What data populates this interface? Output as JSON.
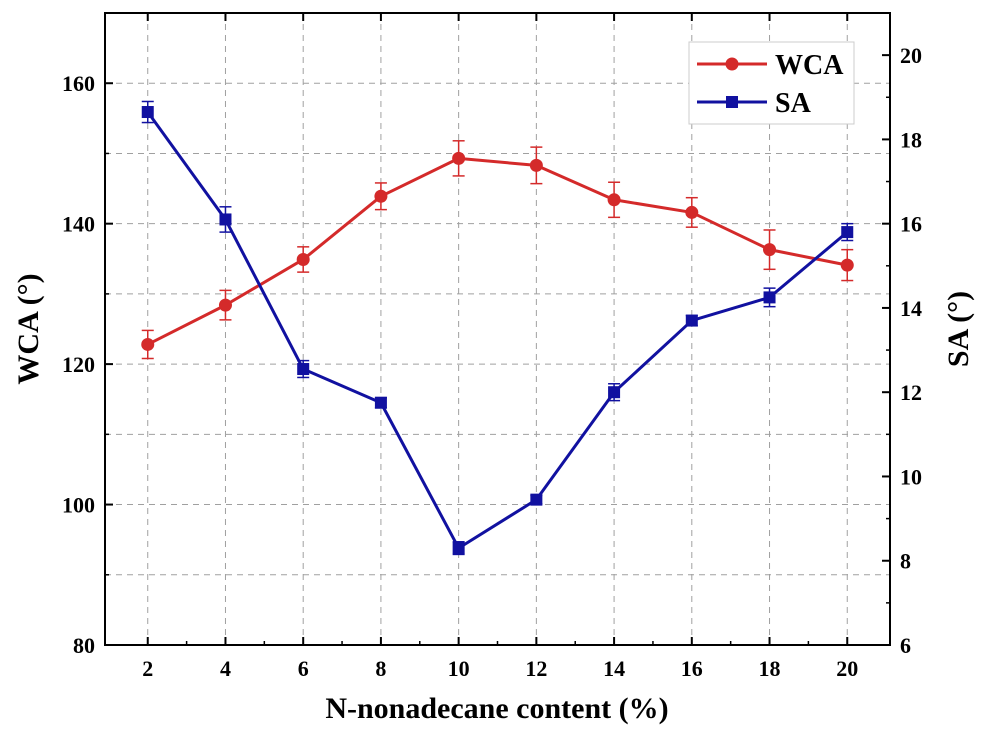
{
  "chart_data": {
    "type": "line",
    "xlabel": "N-nonadecane content (%)",
    "ylabel": "WCA (°)",
    "y2label": "SA (°)",
    "x": [
      2,
      4,
      6,
      8,
      10,
      12,
      14,
      16,
      18,
      20
    ],
    "x_ticks": [
      "2",
      "4",
      "6",
      "8",
      "10",
      "12",
      "14",
      "16",
      "18",
      "20"
    ],
    "xlim": [
      0.9,
      21.1
    ],
    "ylim": [
      80,
      170
    ],
    "y_ticks": [
      "80",
      "100",
      "120",
      "140",
      "160"
    ],
    "y2lim": [
      6,
      21
    ],
    "y2_ticks": [
      "6",
      "8",
      "10",
      "12",
      "14",
      "16",
      "18",
      "20"
    ],
    "grid": true,
    "legend_position": "top-right",
    "series": [
      {
        "name": "WCA",
        "axis": "left",
        "color": "#d42a2a",
        "marker": "circle",
        "values": [
          122.8,
          128.4,
          134.9,
          143.9,
          149.3,
          148.3,
          143.4,
          141.6,
          136.3,
          134.1
        ],
        "errors": [
          2.0,
          2.1,
          1.8,
          1.9,
          2.5,
          2.6,
          2.5,
          2.1,
          2.8,
          2.2
        ]
      },
      {
        "name": "SA",
        "axis": "right",
        "color": "#1111a0",
        "marker": "square",
        "values": [
          18.65,
          16.1,
          12.55,
          11.75,
          8.3,
          9.45,
          12.0,
          13.7,
          14.25,
          15.8
        ],
        "errors": [
          0.25,
          0.3,
          0.2,
          0.12,
          0.15,
          0.1,
          0.2,
          0.12,
          0.22,
          0.2
        ]
      }
    ]
  }
}
